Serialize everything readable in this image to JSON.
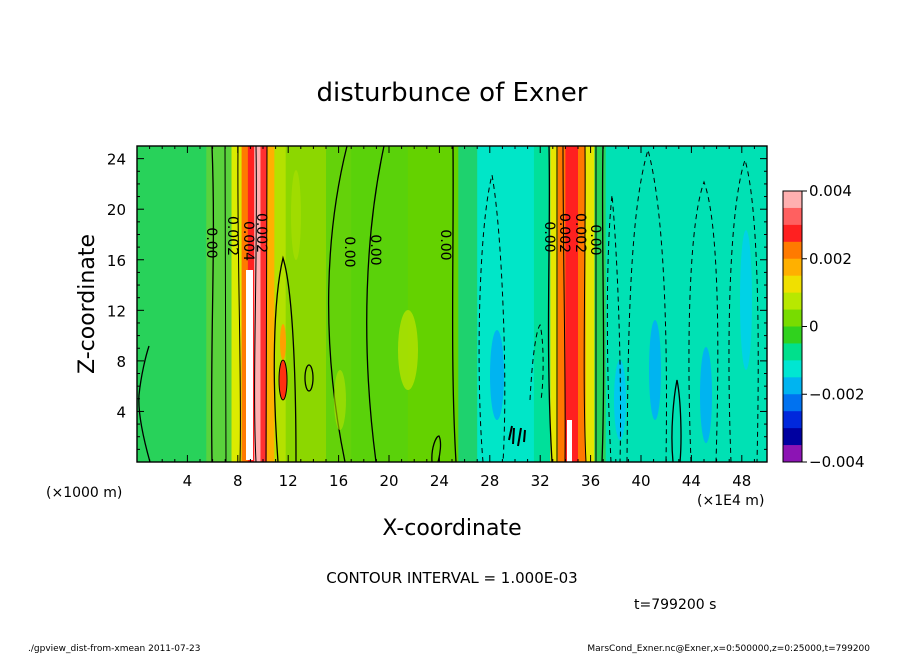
{
  "chart_data": {
    "type": "heatmap",
    "title": "disturbunce of Exner",
    "xlabel": "X-coordinate",
    "ylabel": "Z-coordinate",
    "x_unit_left": "(×1000 m)",
    "x_unit_right": "(×1E4 m)",
    "x_ticks": [
      "4",
      "8",
      "12",
      "16",
      "20",
      "24",
      "28",
      "32",
      "36",
      "40",
      "44",
      "48"
    ],
    "y_ticks": [
      "4",
      "8",
      "12",
      "16",
      "20",
      "24"
    ],
    "xlim": [
      0,
      50
    ],
    "ylim": [
      0,
      25
    ],
    "colorbar": {
      "range": [
        -0.004,
        0.004
      ],
      "tick_labels": [
        "0.004",
        "0.002",
        "0",
        "−0.002",
        "−0.004"
      ],
      "colors": [
        "#ffb0b0",
        "#ff6060",
        "#ff2020",
        "#ff7a00",
        "#ffb000",
        "#f0e000",
        "#b8e800",
        "#78dc00",
        "#30d21e",
        "#00e08c",
        "#00e6d2",
        "#00b4f0",
        "#0072f0",
        "#0028dc",
        "#0000a0",
        "#8c14b4"
      ]
    },
    "field_bands": [
      {
        "x": [
          0,
          5.5
        ],
        "value": 0.0004,
        "color": "#28d25a"
      },
      {
        "x": [
          5.5,
          7.5
        ],
        "value": 0.0005,
        "color": "#5ad23c"
      },
      {
        "x": [
          7.5,
          8.3
        ],
        "value": 0.0013,
        "color": "#dceb00"
      },
      {
        "x": [
          8.3,
          8.8
        ],
        "value": 0.0025,
        "color": "#ff7a00"
      },
      {
        "x": [
          8.8,
          9.3
        ],
        "value": 0.0035,
        "color": "#ff2020"
      },
      {
        "x": [
          9.3,
          9.8
        ],
        "value": 0.0042,
        "color": "#ffb0b0"
      },
      {
        "x": [
          9.8,
          10.3
        ],
        "value": 0.0032,
        "color": "#ff3030"
      },
      {
        "x": [
          10.3,
          10.9
        ],
        "value": 0.002,
        "color": "#ffb000"
      },
      {
        "x": [
          10.9,
          11.8
        ],
        "value": 0.001,
        "color": "#b4e100"
      },
      {
        "x": [
          11.8,
          15
        ],
        "value": 0.0006,
        "color": "#8cd700"
      },
      {
        "x": [
          15,
          17
        ],
        "value": 0.0004,
        "color": "#64d20a"
      },
      {
        "x": [
          17,
          21.5
        ],
        "value": 0.0005,
        "color": "#5ad20a"
      },
      {
        "x": [
          21.5,
          25.5
        ],
        "value": 0.0003,
        "color": "#64d200"
      },
      {
        "x": [
          25.5,
          27
        ],
        "value": 0.0001,
        "color": "#1ed26e"
      },
      {
        "x": [
          27,
          31.5
        ],
        "value": -0.0008,
        "color": "#00e6c8"
      },
      {
        "x": [
          31.5,
          32.8
        ],
        "value": -0.0003,
        "color": "#00e09a"
      },
      {
        "x": [
          32.8,
          33.4
        ],
        "value": 0.0013,
        "color": "#e6e600"
      },
      {
        "x": [
          33.4,
          34
        ],
        "value": 0.0028,
        "color": "#ff7800"
      },
      {
        "x": [
          34,
          35
        ],
        "value": 0.0036,
        "color": "#ff2020"
      },
      {
        "x": [
          35,
          35.6
        ],
        "value": 0.0026,
        "color": "#ff7800"
      },
      {
        "x": [
          35.6,
          36.3
        ],
        "value": 0.0012,
        "color": "#e6e600"
      },
      {
        "x": [
          36.3,
          37.2
        ],
        "value": 0.0003,
        "color": "#28d25a"
      },
      {
        "x": [
          37.2,
          50
        ],
        "value": -0.0006,
        "color": "#00e1b4"
      }
    ],
    "contour_interval": "CONTOUR INTERVAL = 1.000E-03",
    "contour_labels": [
      "0.00",
      "0.002",
      "0.004",
      "0.002",
      "0.00",
      "0.00",
      "0.00",
      "0.00",
      "0.002",
      "0.002",
      "0.00"
    ],
    "time_label": "t=799200 s"
  },
  "footer": {
    "left": "./gpview_dist-from-xmean  2011-07-23",
    "right": "MarsCond_Exner.nc@Exner,x=0:500000,z=0:25000,t=799200"
  }
}
